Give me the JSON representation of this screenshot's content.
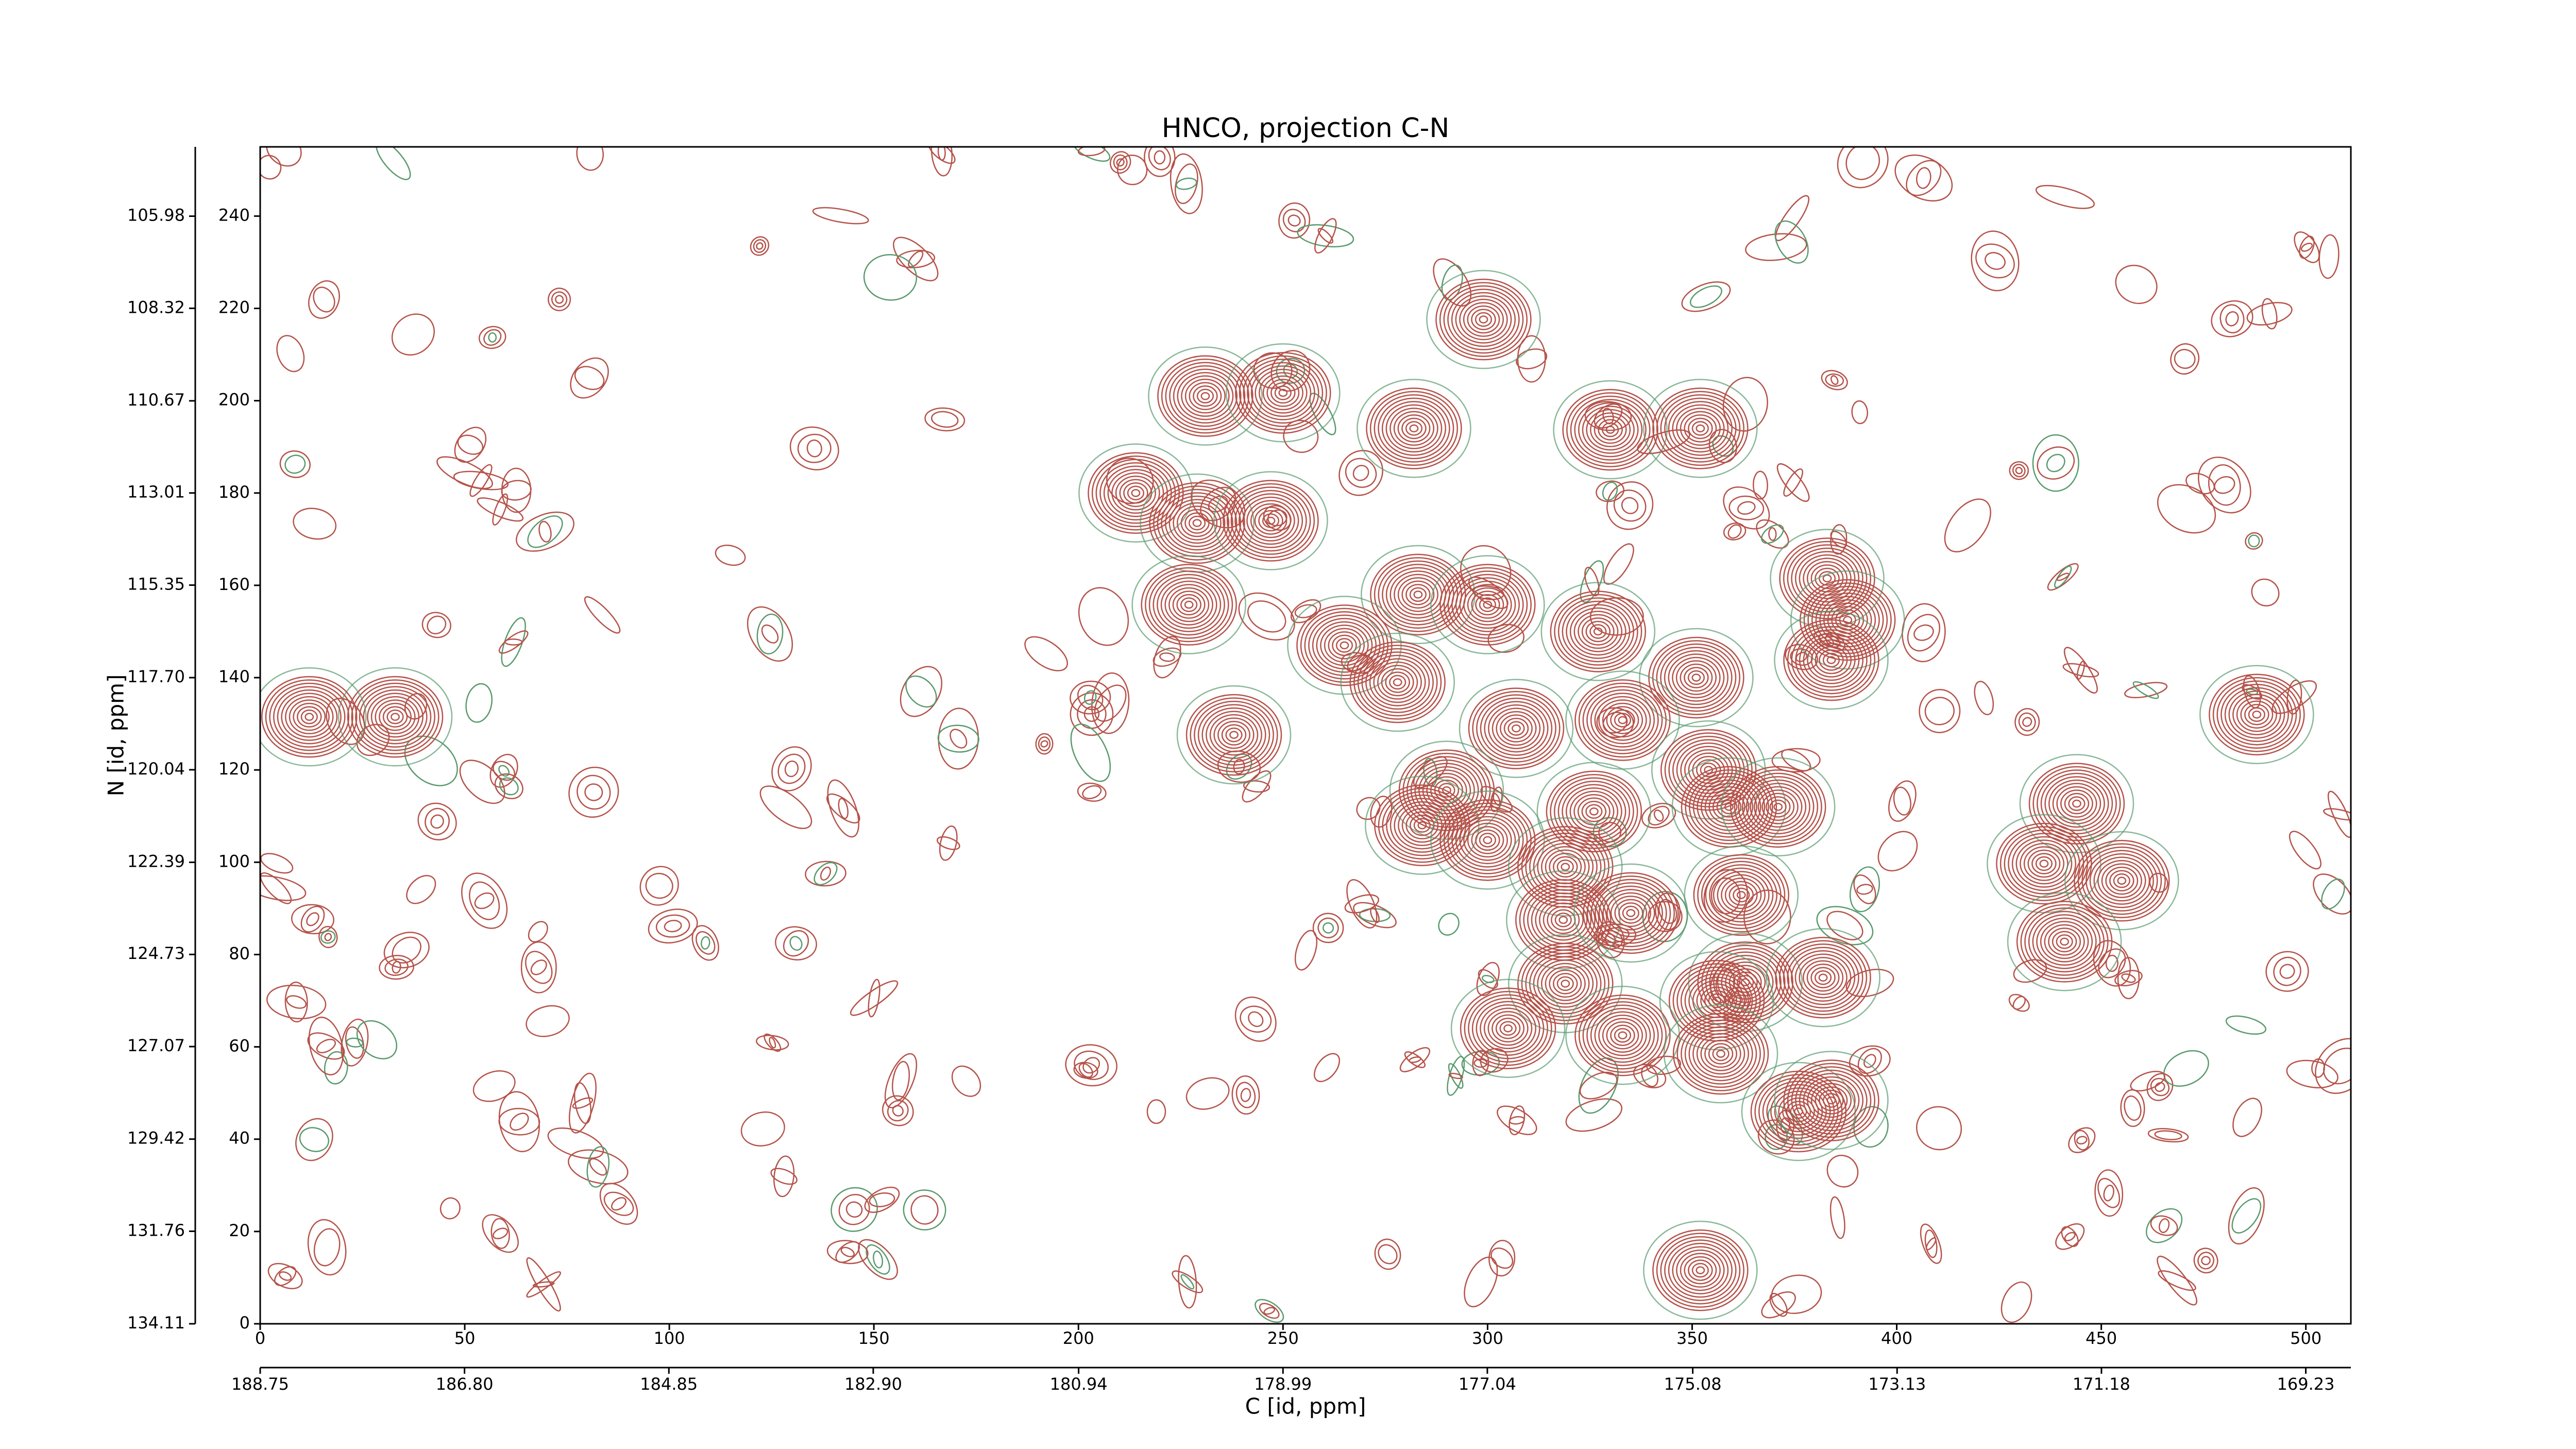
{
  "chart_data": {
    "type": "contour",
    "title": "HNCO, projection C-N",
    "x_label": "C [id, ppm]",
    "y_label": "N [id, ppm]",
    "color": "#b5534a",
    "x": [
      299,
      231,
      250,
      282,
      330,
      352,
      214,
      229,
      247,
      227,
      283,
      300,
      327,
      383,
      388,
      384,
      265,
      278,
      351,
      238,
      307,
      333,
      354,
      290,
      326,
      284,
      300,
      359,
      371,
      444,
      436,
      455,
      319,
      362,
      318.5,
      335,
      441,
      319,
      363,
      382,
      356,
      305,
      333,
      357,
      376,
      384,
      352,
      33,
      12,
      488
    ],
    "values": [
      217.6,
      201,
      201.7,
      194,
      193.7,
      194,
      180,
      173.5,
      174,
      155.8,
      158,
      155.8,
      150,
      161.5,
      152.5,
      143.8,
      147,
      139,
      140,
      127.6,
      129,
      130.8,
      120,
      115.6,
      111,
      108,
      104.8,
      112,
      112,
      112.7,
      99.7,
      96,
      99,
      92.9,
      87.5,
      89,
      82.8,
      73.7,
      74,
      75,
      70,
      64,
      62.5,
      58.5,
      46,
      48.4,
      11.6,
      131.5,
      131.5,
      132
    ],
    "xlim": [
      0,
      511
    ],
    "xticks": [
      0,
      50,
      100,
      150,
      200,
      250,
      300,
      350,
      400,
      450,
      500
    ],
    "ylim": [
      0,
      255
    ],
    "yticks": [
      0,
      20,
      40,
      60,
      80,
      100,
      120,
      140,
      160,
      180,
      200,
      220,
      240
    ],
    "x2lim": [
      188.75,
      168.8
    ],
    "x2ticks": [
      {
        "value": 188.75,
        "label": "188.75"
      },
      {
        "value": 186.8,
        "label": "186.80"
      },
      {
        "value": 184.85,
        "label": "184.85"
      },
      {
        "value": 182.9,
        "label": "182.90"
      },
      {
        "value": 180.94,
        "label": "180.94"
      },
      {
        "value": 178.99,
        "label": "178.99"
      },
      {
        "value": 177.04,
        "label": "177.04"
      },
      {
        "value": 175.08,
        "label": "175.08"
      },
      {
        "value": 173.13,
        "label": "173.13"
      },
      {
        "value": 171.18,
        "label": "171.18"
      },
      {
        "value": 169.23,
        "label": "169.23"
      }
    ],
    "y2lim": [
      134.11,
      104.22
    ],
    "y2ticks": [
      134.11,
      131.76,
      129.42,
      127.07,
      124.73,
      122.39,
      120.04,
      {
        "value": 117.7,
        "label": "117.70"
      },
      115.35,
      113.01,
      110.67,
      108.32,
      105.98
    ]
  }
}
